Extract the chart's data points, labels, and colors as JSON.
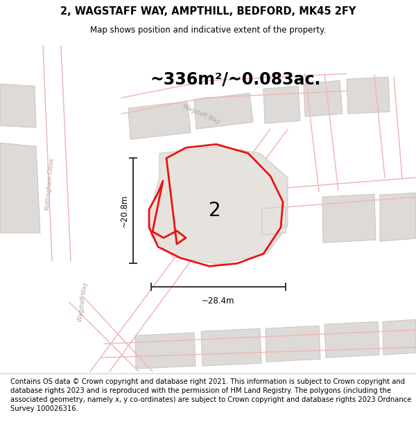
{
  "title": "2, WAGSTAFF WAY, AMPTHILL, BEDFORD, MK45 2FY",
  "subtitle": "Map shows position and indicative extent of the property.",
  "area_text": "~336m²/~0.083ac.",
  "label_2": "2",
  "dim_h": "~20.8m",
  "dim_w": "~28.4m",
  "footer": "Contains OS data © Crown copyright and database right 2021. This information is subject to Crown copyright and database rights 2023 and is reproduced with the permission of HM Land Registry. The polygons (including the associated geometry, namely x, y co-ordinates) are subject to Crown copyright and database rights 2023 Ordnance Survey 100026316.",
  "map_bg": "#f2f0ed",
  "road_pink": "#f0b8b8",
  "bld_fill": "#dedad7",
  "bld_edge": "#c8c4c0",
  "red_color": "#ee1111",
  "dim_line_color": "#333333",
  "road_label_color": "#b0a8a0",
  "title_fontsize": 10.5,
  "subtitle_fontsize": 8.5,
  "area_fontsize": 17,
  "label_fontsize": 20,
  "dim_fontsize": 8.5,
  "footer_fontsize": 7.2,
  "road_lw": 1.1,
  "red_lw": 2.0
}
